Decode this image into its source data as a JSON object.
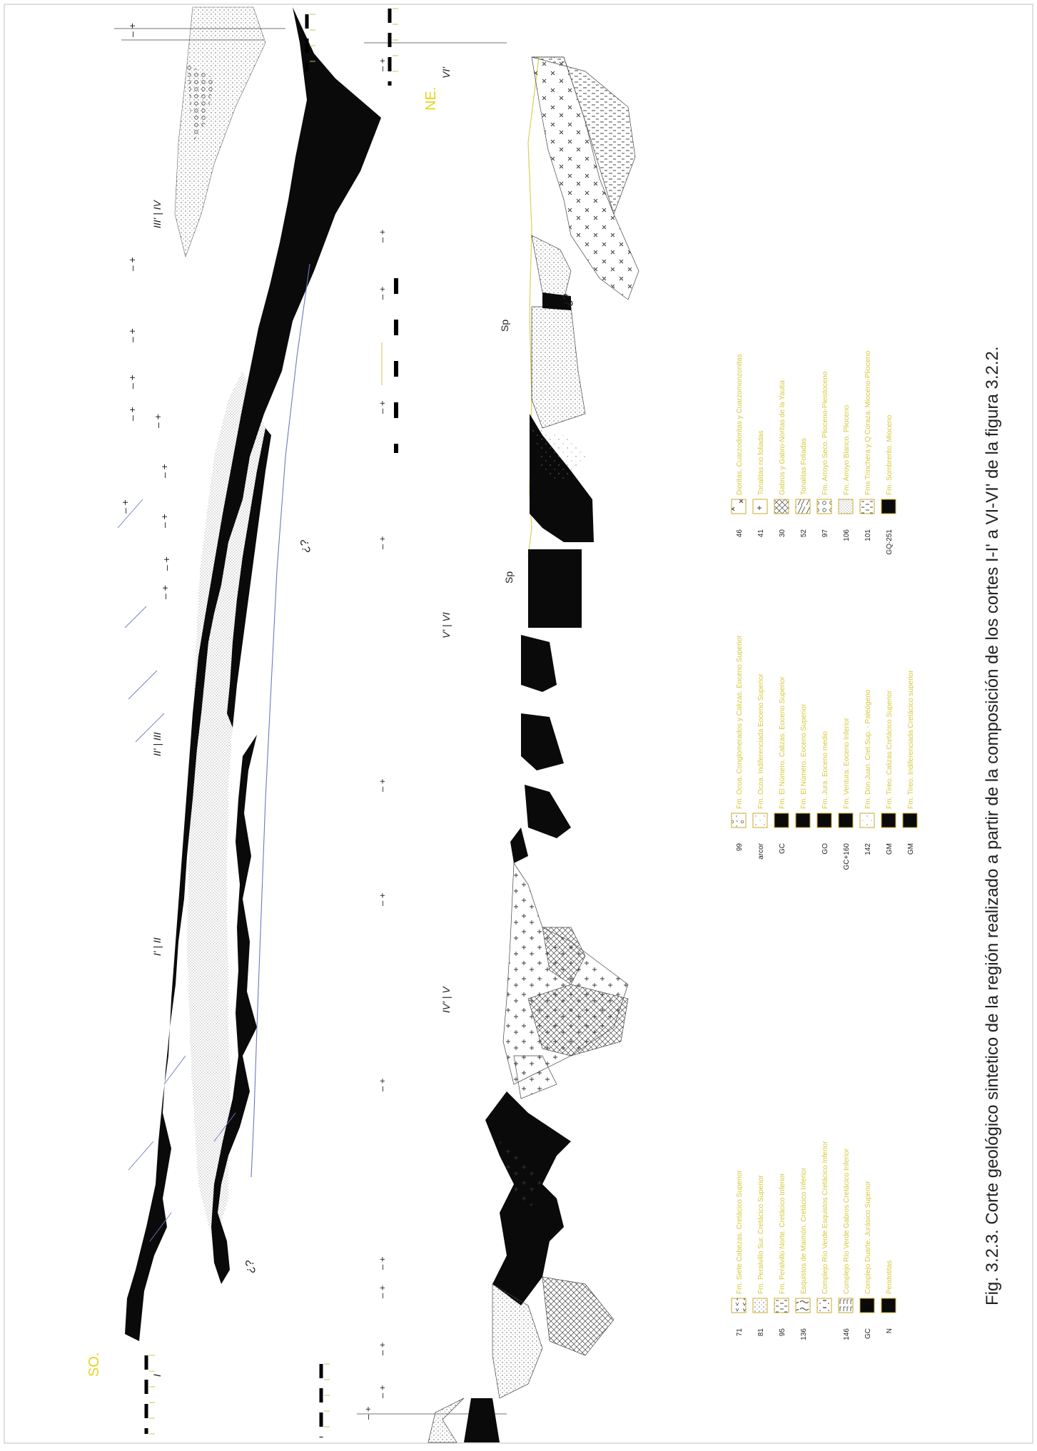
{
  "caption": "Fig. 3.2.3. Corte geológico sintetico de la región realizado a partir de la composición de los cortes I-I' a VI-VI' de la figura 3.2.2.",
  "orientation": {
    "so": "SO.",
    "ne": "NE."
  },
  "section_marks": {
    "m_I": "I",
    "m_I_II": "I' | II",
    "m_II_III": "II' | III",
    "m_III_IV": "III' | IV",
    "m_IV_V": "IV' | V",
    "m_V_VI": "V' | VI",
    "m_VI": "VI'"
  },
  "annotations": {
    "q1": "¿?",
    "q2": "¿?",
    "q3": "¿?",
    "q4": "¿?",
    "sp1": "Sp",
    "sp2": "Sp"
  },
  "colors": {
    "legend_text": "#d8c83a",
    "orientation": "#e8d21a",
    "black": "#0a0a0a",
    "fault_blue": "#6c78c4"
  },
  "legend": {
    "col1": [
      {
        "code": "71",
        "label": "Fm. Siete Cabezas. Cretácico Superior",
        "pattern": "v-marks"
      },
      {
        "code": "81",
        "label": "Fm. Peralvillo Sur. Cretácico Superior",
        "pattern": "dots"
      },
      {
        "code": "95",
        "label": "Fm. Peralvillo Norte. Cretácico Inferior",
        "pattern": "dashes"
      },
      {
        "code": "136",
        "label": "Esquistos de Maimón. Cretácico Inferior",
        "pattern": "schist"
      },
      {
        "code": "",
        "label": "Complejo Río Verde Esquistos Cretácico Inferior",
        "pattern": "dash-dots"
      },
      {
        "code": "146",
        "label": "Complejo Río Verde Gabros Cretácico Inferior",
        "pattern": "gabbro"
      },
      {
        "code": "GC",
        "label": "Complejo Duarte. Jurásico Superior",
        "pattern": "black"
      },
      {
        "code": "N",
        "label": "Peridotitas",
        "pattern": "black"
      }
    ],
    "col2": [
      {
        "code": "99",
        "label": "Fm. Ocoa. Conglomerados y Calizas. Eoceno Superior",
        "pattern": "conglomerate"
      },
      {
        "code": "arcor",
        "label": "Fm. Ocoa. Indiferenciada Eoceno Superior",
        "pattern": "sparse-dots"
      },
      {
        "code": "GC",
        "label": "Fm. El Número. Calizas. Eoceno Superior",
        "pattern": "black"
      },
      {
        "code": "",
        "label": "Fm. El Número. Eoceno Superior",
        "pattern": "black"
      },
      {
        "code": "GO",
        "label": "Fm. Jura. Eoceno medio",
        "pattern": "black"
      },
      {
        "code": "GC+160",
        "label": "Fm. Ventura. Eoceno Inferior",
        "pattern": "black"
      },
      {
        "code": "142",
        "label": "Fm. Don Juan. Cret.Sup. - Paleógeno",
        "pattern": "sparse-dots"
      },
      {
        "code": "GM",
        "label": "Fm. Tireo. Calizas Cretácico Superior",
        "pattern": "black"
      },
      {
        "code": "GM",
        "label": "Fm. Tireo. Indiferenciada Cretácico superior",
        "pattern": "black"
      }
    ],
    "col3": [
      {
        "code": "46",
        "label": "Dioritas, Cuarzodioritas y Cuarzomonzonitas",
        "pattern": "cross-x"
      },
      {
        "code": "41",
        "label": "Tonalitas no foliadas",
        "pattern": "cross-plus"
      },
      {
        "code": "30",
        "label": "Gabros y Gabro-Noritas de la Yautia",
        "pattern": "crosshatch"
      },
      {
        "code": "52",
        "label": "Tonalitas Foliadas",
        "pattern": "foliated"
      },
      {
        "code": "97",
        "label": "Fm. Arroyo Seco. Plioceno-Pleistoceno",
        "pattern": "circles"
      },
      {
        "code": "106",
        "label": "Fm. Arroyo Blanco. Plioceno",
        "pattern": "fine-dots"
      },
      {
        "code": "101",
        "label": "Fms Trinchera y Q Coraza. Mioceno-Plioceno",
        "pattern": "dashes"
      },
      {
        "code": "GQ-251",
        "label": "Fm. Sombrerito. Mioceno",
        "pattern": "black"
      }
    ]
  }
}
